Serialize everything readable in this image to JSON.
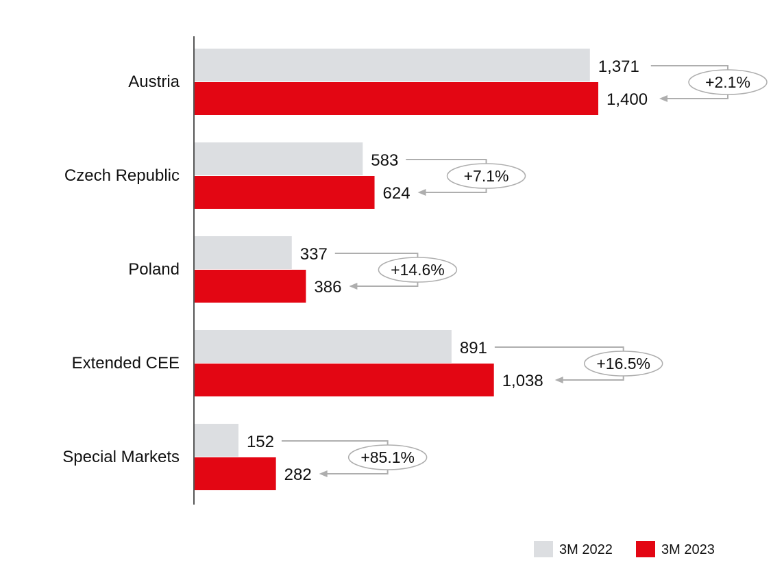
{
  "chart_data": {
    "type": "bar",
    "orientation": "horizontal",
    "categories": [
      "Austria",
      "Czech Republic",
      "Poland",
      "Extended CEE",
      "Special Markets"
    ],
    "series": [
      {
        "name": "3M 2022",
        "color": "#dcdee1",
        "values": [
          1371,
          583,
          337,
          891,
          152
        ],
        "labels": [
          "1,371",
          "583",
          "337",
          "891",
          "152"
        ]
      },
      {
        "name": "3M 2023",
        "color": "#e30613",
        "values": [
          1400,
          624,
          386,
          1038,
          282
        ],
        "labels": [
          "1,400",
          "624",
          "386",
          "1,038",
          "282"
        ]
      }
    ],
    "growth_labels": [
      "+2.1%",
      "+7.1%",
      "+14.6%",
      "+16.5%",
      "+85.1%"
    ],
    "legend_position": "bottom-right",
    "grid": false,
    "xlim": [
      0,
      1400
    ]
  }
}
